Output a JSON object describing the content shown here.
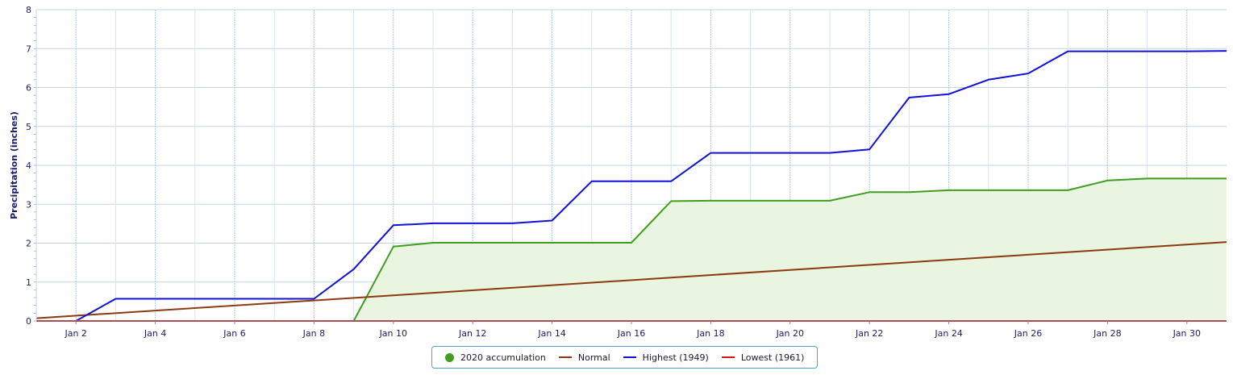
{
  "chart_data": {
    "type": "line",
    "ylabel": "Precipitation (inches)",
    "ylim": [
      0,
      8
    ],
    "yticks": [
      0,
      1,
      2,
      3,
      4,
      5,
      6,
      7,
      8
    ],
    "xlim": [
      1,
      31
    ],
    "xticks": [
      {
        "day": 2,
        "label": "Jan 2"
      },
      {
        "day": 4,
        "label": "Jan 4"
      },
      {
        "day": 6,
        "label": "Jan 6"
      },
      {
        "day": 8,
        "label": "Jan 8"
      },
      {
        "day": 10,
        "label": "Jan 10"
      },
      {
        "day": 12,
        "label": "Jan 12"
      },
      {
        "day": 14,
        "label": "Jan 14"
      },
      {
        "day": 16,
        "label": "Jan 16"
      },
      {
        "day": 18,
        "label": "Jan 18"
      },
      {
        "day": 20,
        "label": "Jan 20"
      },
      {
        "day": 22,
        "label": "Jan 22"
      },
      {
        "day": 24,
        "label": "Jan 24"
      },
      {
        "day": 26,
        "label": "Jan 26"
      },
      {
        "day": 28,
        "label": "Jan 28"
      },
      {
        "day": 30,
        "label": "Jan 30"
      }
    ],
    "grid": true,
    "legend_position": "bottom-center",
    "series": [
      {
        "name": "2020 accumulation",
        "style": "area",
        "color": "#3f9e1e",
        "fill": "#e9f4e1",
        "x": [
          1,
          2,
          3,
          4,
          5,
          6,
          7,
          8,
          9,
          10,
          11,
          12,
          13,
          14,
          15,
          16,
          17,
          18,
          19,
          20,
          21,
          22,
          23,
          24,
          25,
          26,
          27,
          28,
          29,
          30,
          31
        ],
        "values": [
          0,
          0,
          0,
          0,
          0,
          0,
          0,
          0,
          0,
          1.91,
          2.01,
          2.01,
          2.01,
          2.01,
          2.01,
          2.01,
          3.08,
          3.09,
          3.09,
          3.09,
          3.09,
          3.31,
          3.31,
          3.36,
          3.36,
          3.36,
          3.36,
          3.61,
          3.66,
          3.66,
          3.66
        ]
      },
      {
        "name": "Normal",
        "style": "line",
        "color": "#8b3a0f",
        "x": [
          1,
          31
        ],
        "values": [
          0.07,
          2.03
        ]
      },
      {
        "name": "Highest (1949)",
        "style": "line",
        "color": "#1010d8",
        "x": [
          1,
          2,
          3,
          4,
          5,
          6,
          7,
          8,
          9,
          10,
          11,
          12,
          13,
          14,
          15,
          16,
          17,
          18,
          19,
          20,
          21,
          22,
          23,
          24,
          25,
          26,
          27,
          28,
          29,
          30,
          31
        ],
        "values": [
          0,
          0,
          0.57,
          0.57,
          0.57,
          0.57,
          0.57,
          0.57,
          1.33,
          2.46,
          2.51,
          2.51,
          2.51,
          2.58,
          3.59,
          3.59,
          3.59,
          4.32,
          4.32,
          4.32,
          4.32,
          4.41,
          5.74,
          5.83,
          6.2,
          6.36,
          6.93,
          6.93,
          6.93,
          6.93,
          6.94
        ]
      },
      {
        "name": "Lowest (1961)",
        "style": "line",
        "color": "#e01010",
        "x": [
          1,
          31
        ],
        "values": [
          0,
          0
        ]
      }
    ]
  }
}
